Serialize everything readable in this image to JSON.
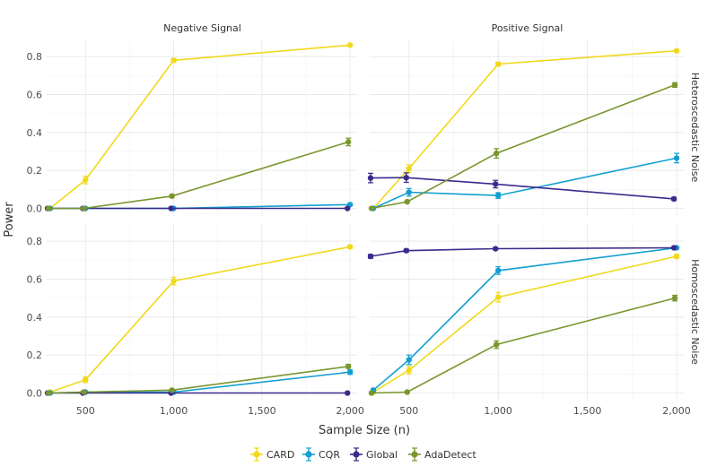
{
  "chart_data": {
    "type": "line",
    "xlabel": "Sample Size (n)",
    "ylabel": "Power",
    "xlim": [
      280,
      2040
    ],
    "ylim": [
      -0.04,
      0.89
    ],
    "x_ticks": [
      500,
      1000,
      1500,
      2000
    ],
    "x_tick_labels": [
      "500",
      "1,000",
      "1,500",
      "2,000"
    ],
    "y_ticks": [
      0,
      0.2,
      0.4,
      0.6,
      0.8
    ],
    "y_tick_labels": [
      "0.0",
      "0.2",
      "0.4",
      "0.6",
      "0.8"
    ],
    "grid": true,
    "legend_position": "bottom",
    "col_labels": [
      "Negative Signal",
      "Positive Signal"
    ],
    "row_labels": [
      "Heteroscedastic Noise",
      "Homoscedastic Noise"
    ],
    "series": [
      {
        "name": "CARD",
        "color": "#f0d91b"
      },
      {
        "name": "CQR",
        "color": "#119fd1"
      },
      {
        "name": "Global",
        "color": "#3b2a8c"
      },
      {
        "name": "AdaDetect",
        "color": "#7a962e"
      }
    ],
    "panels": [
      {
        "row": 0,
        "col": 0,
        "lines": [
          {
            "series": "CARD",
            "x": [
              300,
              500,
              1000,
              2000
            ],
            "y": [
              0.0,
              0.15,
              0.78,
              0.86
            ],
            "err": [
              0.005,
              0.02,
              0.01,
              0.005
            ]
          },
          {
            "series": "CQR",
            "x": [
              300,
              500,
              1000,
              2000
            ],
            "y": [
              0.0,
              0.0,
              0.0,
              0.02
            ],
            "err": [
              0,
              0,
              0,
              0.005
            ]
          },
          {
            "series": "Global",
            "x": [
              285,
              485,
              985,
              1985
            ],
            "y": [
              0.0,
              0.0,
              0.0,
              0.0
            ],
            "err": [
              0,
              0,
              0,
              0
            ]
          },
          {
            "series": "AdaDetect",
            "x": [
              290,
              490,
              990,
              1990
            ],
            "y": [
              0.0,
              0.0,
              0.065,
              0.35
            ],
            "err": [
              0,
              0,
              0.008,
              0.02
            ]
          }
        ]
      },
      {
        "row": 0,
        "col": 1,
        "lines": [
          {
            "series": "CARD",
            "x": [
              300,
              500,
              1000,
              2000
            ],
            "y": [
              0.0,
              0.21,
              0.76,
              0.83
            ],
            "err": [
              0.005,
              0.02,
              0.01,
              0.005
            ]
          },
          {
            "series": "CQR",
            "x": [
              300,
              500,
              1000,
              2000
            ],
            "y": [
              0.0,
              0.085,
              0.068,
              0.265
            ],
            "err": [
              0.005,
              0.02,
              0.015,
              0.025
            ]
          },
          {
            "series": "Global",
            "x": [
              285,
              485,
              985,
              1985
            ],
            "y": [
              0.16,
              0.162,
              0.128,
              0.05
            ],
            "err": [
              0.025,
              0.025,
              0.02,
              0.008
            ]
          },
          {
            "series": "AdaDetect",
            "x": [
              290,
              490,
              990,
              1990
            ],
            "y": [
              0.0,
              0.035,
              0.29,
              0.65
            ],
            "err": [
              0,
              0.005,
              0.025,
              0.012
            ]
          }
        ]
      },
      {
        "row": 1,
        "col": 0,
        "lines": [
          {
            "series": "CARD",
            "x": [
              300,
              500,
              1000,
              2000
            ],
            "y": [
              0.005,
              0.07,
              0.59,
              0.77
            ],
            "err": [
              0.005,
              0.015,
              0.02,
              0.008
            ]
          },
          {
            "series": "CQR",
            "x": [
              300,
              500,
              1000,
              2000
            ],
            "y": [
              0.0,
              0.005,
              0.005,
              0.11
            ],
            "err": [
              0,
              0.003,
              0.005,
              0.012
            ]
          },
          {
            "series": "Global",
            "x": [
              285,
              485,
              985,
              1985
            ],
            "y": [
              0.0,
              0.0,
              0.0,
              0.0
            ],
            "err": [
              0,
              0,
              0,
              0
            ]
          },
          {
            "series": "AdaDetect",
            "x": [
              290,
              490,
              990,
              1990
            ],
            "y": [
              0.0,
              0.005,
              0.015,
              0.14
            ],
            "err": [
              0,
              0.003,
              0.005,
              0.01
            ]
          }
        ]
      },
      {
        "row": 1,
        "col": 1,
        "lines": [
          {
            "series": "CARD",
            "x": [
              300,
              500,
              1000,
              2000
            ],
            "y": [
              0.005,
              0.12,
              0.505,
              0.72
            ],
            "err": [
              0.005,
              0.02,
              0.025,
              0.01
            ]
          },
          {
            "series": "CQR",
            "x": [
              300,
              500,
              1000,
              2000
            ],
            "y": [
              0.015,
              0.175,
              0.645,
              0.765
            ],
            "err": [
              0.008,
              0.025,
              0.02,
              0.005
            ]
          },
          {
            "series": "Global",
            "x": [
              285,
              485,
              985,
              1985
            ],
            "y": [
              0.72,
              0.75,
              0.76,
              0.765
            ],
            "err": [
              0.01,
              0.008,
              0.005,
              0.005
            ]
          },
          {
            "series": "AdaDetect",
            "x": [
              290,
              490,
              990,
              1990
            ],
            "y": [
              0.0,
              0.005,
              0.255,
              0.5
            ],
            "err": [
              0,
              0.003,
              0.02,
              0.015
            ]
          }
        ]
      }
    ]
  }
}
